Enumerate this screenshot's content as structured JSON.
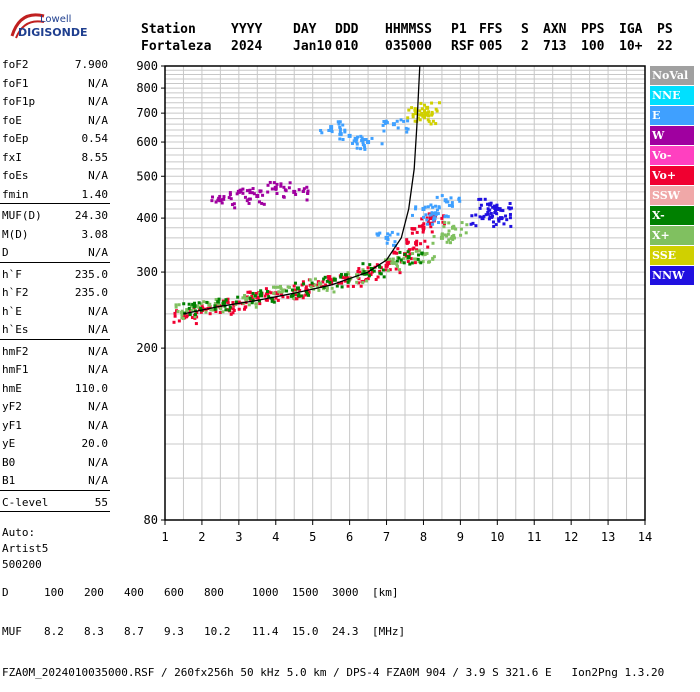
{
  "logo": {
    "brand_line1": "Lowell",
    "brand_line2": "DIGISONDE"
  },
  "header": {
    "labels": [
      "Station",
      "YYYY",
      "DAY",
      "DDD",
      "HHMMSS",
      "P1",
      "FFS",
      "S",
      "AXN",
      "PPS",
      "IGA",
      "PS"
    ],
    "values": [
      "Fortaleza",
      "2024",
      "Jan10",
      "010",
      "035000",
      "RSF",
      "005",
      "2",
      "713",
      "100",
      "10+",
      "22"
    ]
  },
  "params": {
    "group1": [
      {
        "name": "foF2",
        "value": "7.900"
      },
      {
        "name": "foF1",
        "value": "N/A"
      },
      {
        "name": "foF1p",
        "value": "N/A"
      },
      {
        "name": "foE",
        "value": "N/A"
      },
      {
        "name": "foEp",
        "value": "0.54"
      },
      {
        "name": "fxI",
        "value": "8.55"
      },
      {
        "name": "foEs",
        "value": "N/A"
      },
      {
        "name": "fmin",
        "value": "1.40"
      }
    ],
    "group2": [
      {
        "name": "MUF(D)",
        "value": "24.30"
      },
      {
        "name": "M(D)",
        "value": "3.08"
      },
      {
        "name": "D",
        "value": "N/A"
      }
    ],
    "group3": [
      {
        "name": "h`F",
        "value": "235.0"
      },
      {
        "name": "h`F2",
        "value": "235.0"
      },
      {
        "name": "h`E",
        "value": "N/A"
      },
      {
        "name": "h`Es",
        "value": "N/A"
      }
    ],
    "group4": [
      {
        "name": "hmF2",
        "value": "N/A"
      },
      {
        "name": "hmF1",
        "value": "N/A"
      },
      {
        "name": "hmE",
        "value": "110.0"
      },
      {
        "name": "yF2",
        "value": "N/A"
      },
      {
        "name": "yF1",
        "value": "N/A"
      },
      {
        "name": "yE",
        "value": "20.0"
      },
      {
        "name": "B0",
        "value": "N/A"
      },
      {
        "name": "B1",
        "value": "N/A"
      }
    ],
    "group5": [
      {
        "name": "C-level",
        "value": "55"
      }
    ],
    "auto": [
      "Auto:",
      "Artist5",
      "500200"
    ]
  },
  "legend": [
    {
      "label": "NoVal",
      "color": "#a0a0a0"
    },
    {
      "label": "NNE",
      "color": "#00e0ff"
    },
    {
      "label": "E",
      "color": "#3fa0ff"
    },
    {
      "label": "W",
      "color": "#a000a0"
    },
    {
      "label": "Vo-",
      "color": "#ff40c0"
    },
    {
      "label": "Vo+",
      "color": "#f00030"
    },
    {
      "label": "SSW",
      "color": "#f0a8a8"
    },
    {
      "label": "X-",
      "color": "#008000"
    },
    {
      "label": "X+",
      "color": "#80c060"
    },
    {
      "label": "SSE",
      "color": "#d0d000"
    },
    {
      "label": "NNW",
      "color": "#2010e0"
    }
  ],
  "footer": {
    "d_label": "D",
    "d_values": [
      "100",
      "200",
      "400",
      "600",
      "800",
      "1000",
      "1500",
      "3000"
    ],
    "d_unit": "[km]",
    "muf_label": "MUF",
    "muf_values": [
      "8.2",
      "8.3",
      "8.7",
      "9.3",
      "10.2",
      "11.4",
      "15.0",
      "24.3"
    ],
    "muf_unit": "[MHz]",
    "file_line": "FZA0M_2024010035000.RSF / 260fx256h 50 kHz 5.0 km / DPS-4 FZA0M 904 / 3.9 S 321.6 E   Ion2Png 1.3.20"
  },
  "chart_data": {
    "type": "scatter",
    "title": "",
    "xlabel": "",
    "ylabel": "",
    "xlim": [
      1,
      14
    ],
    "ylim": [
      80,
      900
    ],
    "x_ticks": [
      1,
      2,
      3,
      4,
      5,
      6,
      7,
      8,
      9,
      10,
      11,
      12,
      13,
      14
    ],
    "y_ticks": [
      80,
      200,
      300,
      400,
      500,
      600,
      700,
      800,
      900
    ],
    "y_scale": "log",
    "grid": true,
    "series": [
      {
        "name": "Vo+",
        "color": "#f00030",
        "points": [
          [
            1.5,
            238
          ],
          [
            2.0,
            245
          ],
          [
            2.5,
            250
          ],
          [
            3.0,
            255
          ],
          [
            3.5,
            262
          ],
          [
            4.0,
            268
          ],
          [
            4.5,
            272
          ],
          [
            5.0,
            280
          ],
          [
            5.5,
            285
          ],
          [
            6.0,
            290
          ],
          [
            6.5,
            300
          ],
          [
            7.0,
            310
          ],
          [
            7.5,
            330
          ],
          [
            7.8,
            350
          ],
          [
            8.0,
            380
          ],
          [
            8.2,
            400
          ]
        ]
      },
      {
        "name": "X+",
        "color": "#80c060",
        "points": [
          [
            1.6,
            245
          ],
          [
            2.2,
            252
          ],
          [
            3.2,
            260
          ],
          [
            4.2,
            272
          ],
          [
            5.2,
            282
          ],
          [
            6.2,
            295
          ],
          [
            7.2,
            315
          ],
          [
            8.0,
            330
          ],
          [
            8.5,
            360
          ],
          [
            8.8,
            380
          ]
        ]
      },
      {
        "name": "X-",
        "color": "#008000",
        "points": [
          [
            1.8,
            250
          ],
          [
            2.6,
            255
          ],
          [
            3.6,
            265
          ],
          [
            4.6,
            275
          ],
          [
            5.6,
            288
          ],
          [
            6.6,
            305
          ],
          [
            7.6,
            325
          ]
        ]
      },
      {
        "name": "E",
        "color": "#3fa0ff",
        "points": [
          [
            8.0,
            420
          ],
          [
            8.3,
            400
          ],
          [
            8.6,
            440
          ],
          [
            7.0,
            360
          ],
          [
            5.5,
            650
          ],
          [
            6.0,
            620
          ],
          [
            6.5,
            600
          ],
          [
            7.2,
            660
          ]
        ]
      },
      {
        "name": "NNW",
        "color": "#2010e0",
        "points": [
          [
            9.6,
            400
          ],
          [
            9.8,
            430
          ],
          [
            10.0,
            420
          ],
          [
            10.1,
            400
          ]
        ]
      },
      {
        "name": "W",
        "color": "#a000a0",
        "points": [
          [
            2.5,
            440
          ],
          [
            3.0,
            460
          ],
          [
            3.5,
            450
          ],
          [
            4.0,
            470
          ],
          [
            4.5,
            460
          ]
        ]
      },
      {
        "name": "SSE",
        "color": "#d0d000",
        "points": [
          [
            7.8,
            700
          ],
          [
            8.0,
            690
          ],
          [
            8.1,
            720
          ]
        ]
      }
    ],
    "trace": {
      "name": "model",
      "color": "#000000",
      "points": [
        [
          1.5,
          240
        ],
        [
          2.5,
          250
        ],
        [
          3.5,
          258
        ],
        [
          4.5,
          268
        ],
        [
          5.5,
          280
        ],
        [
          6.5,
          300
        ],
        [
          7.0,
          320
        ],
        [
          7.4,
          360
        ],
        [
          7.6,
          420
        ],
        [
          7.75,
          520
        ],
        [
          7.82,
          650
        ],
        [
          7.87,
          800
        ],
        [
          7.9,
          900
        ]
      ]
    }
  }
}
